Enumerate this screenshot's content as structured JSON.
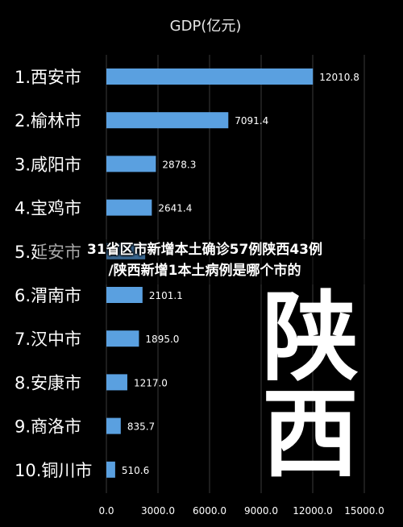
{
  "chart_data": {
    "type": "bar",
    "orientation": "horizontal",
    "title": "GDP(亿元)",
    "categories": [
      "1.西安市",
      "2.榆林市",
      "3.咸阳市",
      "4.宝鸡市",
      "5.延安市",
      "6.渭南市",
      "7.汉中市",
      "8.安康市",
      "9.商洛市",
      "10.铜川市"
    ],
    "values": [
      12010.8,
      7091.4,
      2878.3,
      2641.4,
      2256.6,
      2101.1,
      1895.0,
      1217.0,
      835.7,
      510.6
    ],
    "value_labels": [
      "12010.8",
      "7091.4",
      "2878.3",
      "2641.4",
      "",
      "2101.1",
      "1895.0",
      "1217.0",
      "835.7",
      "510.6"
    ],
    "xlim": [
      0,
      15000
    ],
    "xticks": [
      0,
      3000,
      6000,
      9000,
      12000,
      15000
    ],
    "xtick_labels": [
      "0.0",
      "3000.0",
      "6000.0",
      "9000.0",
      "12000.0",
      "15000.0"
    ],
    "grid": true,
    "bar_color": "#5aa0e0"
  },
  "headline": {
    "line1": "31省区市新增本土确诊57例陕西43例",
    "line2": "/陕西新增1本土病例是哪个市的"
  },
  "stamp": {
    "line1": "陕",
    "line2": "西"
  }
}
